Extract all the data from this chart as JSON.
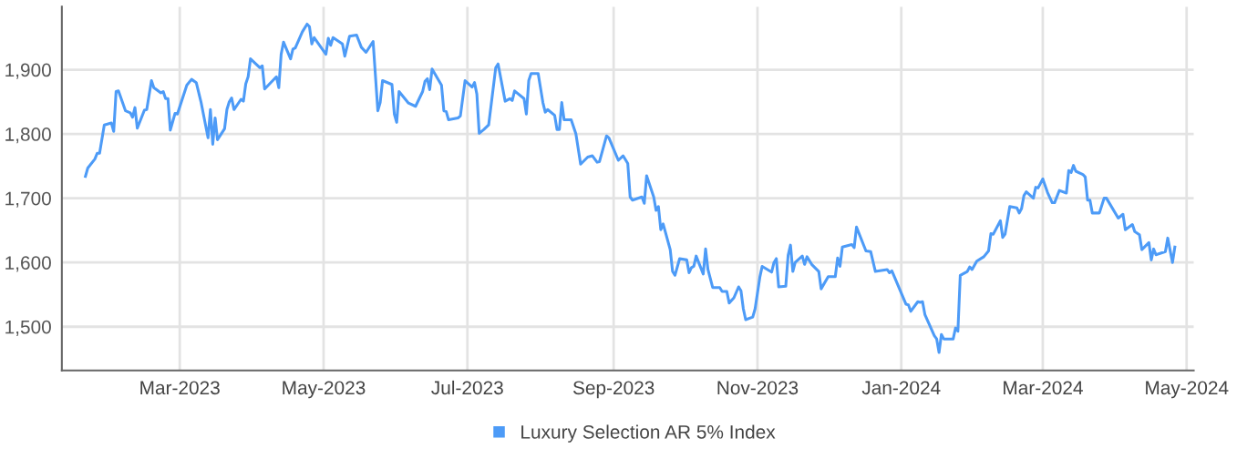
{
  "chart_data": {
    "type": "line",
    "xlim": [
      "2023-01-10",
      "2024-05-04"
    ],
    "ylim": [
      1432,
      1998
    ],
    "xticks": [
      {
        "value": "2023-03-01",
        "label": "Mar-2023"
      },
      {
        "value": "2023-05-01",
        "label": "May-2023"
      },
      {
        "value": "2023-07-01",
        "label": "Jul-2023"
      },
      {
        "value": "2023-09-01",
        "label": "Sep-2023"
      },
      {
        "value": "2023-11-01",
        "label": "Nov-2023"
      },
      {
        "value": "2024-01-01",
        "label": "Jan-2024"
      },
      {
        "value": "2024-03-01",
        "label": "Mar-2024"
      },
      {
        "value": "2024-05-01",
        "label": "May-2024"
      }
    ],
    "yticks": [
      {
        "value": 1500,
        "label": "1,500"
      },
      {
        "value": 1600,
        "label": "1,600"
      },
      {
        "value": 1700,
        "label": "1,700"
      },
      {
        "value": 1800,
        "label": "1,800"
      },
      {
        "value": 1900,
        "label": "1,900"
      }
    ],
    "grid": true,
    "legend": "bottom",
    "marker": "none",
    "line_style": "solid",
    "series": [
      {
        "name": "Luxury Selection AR 5% Index",
        "color": "#4d9bf7",
        "x": [
          "2023-01-20",
          "2023-01-21",
          "2023-01-24",
          "2023-01-25",
          "2023-01-26",
          "2023-01-28",
          "2023-01-31",
          "2023-02-01",
          "2023-02-02",
          "2023-02-03",
          "2023-02-06",
          "2023-02-08",
          "2023-02-09",
          "2023-02-10",
          "2023-02-11",
          "2023-02-14",
          "2023-02-15",
          "2023-02-17",
          "2023-02-18",
          "2023-02-21",
          "2023-02-22",
          "2023-02-23",
          "2023-02-24",
          "2023-02-25",
          "2023-02-27",
          "2023-02-28",
          "2023-03-04",
          "2023-03-06",
          "2023-03-08",
          "2023-03-10",
          "2023-03-13",
          "2023-03-14",
          "2023-03-15",
          "2023-03-16",
          "2023-03-17",
          "2023-03-20",
          "2023-03-21",
          "2023-03-22",
          "2023-03-23",
          "2023-03-24",
          "2023-03-27",
          "2023-03-28",
          "2023-03-29",
          "2023-03-30",
          "2023-03-31",
          "2023-04-04",
          "2023-04-05",
          "2023-04-06",
          "2023-04-11",
          "2023-04-12",
          "2023-04-13",
          "2023-04-14",
          "2023-04-17",
          "2023-04-18",
          "2023-04-19",
          "2023-04-22",
          "2023-04-24",
          "2023-04-25",
          "2023-04-26",
          "2023-04-27",
          "2023-05-02",
          "2023-05-03",
          "2023-05-04",
          "2023-05-05",
          "2023-05-09",
          "2023-05-10",
          "2023-05-12",
          "2023-05-15",
          "2023-05-17",
          "2023-05-19",
          "2023-05-22",
          "2023-05-24",
          "2023-05-25",
          "2023-05-26",
          "2023-05-30",
          "2023-05-31",
          "2023-06-01",
          "2023-06-02",
          "2023-06-06",
          "2023-06-09",
          "2023-06-12",
          "2023-06-13",
          "2023-06-14",
          "2023-06-15",
          "2023-06-16",
          "2023-06-20",
          "2023-06-21",
          "2023-06-22",
          "2023-06-23",
          "2023-06-27",
          "2023-06-28",
          "2023-06-30",
          "2023-07-03",
          "2023-07-04",
          "2023-07-05",
          "2023-07-06",
          "2023-07-08",
          "2023-07-10",
          "2023-07-13",
          "2023-07-14",
          "2023-07-17",
          "2023-07-19",
          "2023-07-20",
          "2023-07-21",
          "2023-07-25",
          "2023-07-26",
          "2023-07-27",
          "2023-07-28",
          "2023-07-31",
          "2023-08-02",
          "2023-08-03",
          "2023-08-04",
          "2023-08-07",
          "2023-08-08",
          "2023-08-09",
          "2023-08-10",
          "2023-08-11",
          "2023-08-14",
          "2023-08-16",
          "2023-08-18",
          "2023-08-21",
          "2023-08-23",
          "2023-08-25",
          "2023-08-26",
          "2023-08-29",
          "2023-08-30",
          "2023-09-03",
          "2023-09-05",
          "2023-09-07",
          "2023-09-08",
          "2023-09-09",
          "2023-09-13",
          "2023-09-14",
          "2023-09-15",
          "2023-09-18",
          "2023-09-19",
          "2023-09-20",
          "2023-09-21",
          "2023-09-22",
          "2023-09-25",
          "2023-09-26",
          "2023-09-27",
          "2023-09-29",
          "2023-10-02",
          "2023-10-03",
          "2023-10-04",
          "2023-10-05",
          "2023-10-06",
          "2023-10-09",
          "2023-10-10",
          "2023-10-11",
          "2023-10-13",
          "2023-10-16",
          "2023-10-17",
          "2023-10-19",
          "2023-10-20",
          "2023-10-22",
          "2023-10-24",
          "2023-10-25",
          "2023-10-26",
          "2023-10-27",
          "2023-10-30",
          "2023-10-31",
          "2023-11-02",
          "2023-11-03",
          "2023-11-07",
          "2023-11-08",
          "2023-11-09",
          "2023-11-10",
          "2023-11-13",
          "2023-11-14",
          "2023-11-15",
          "2023-11-16",
          "2023-11-17",
          "2023-11-20",
          "2023-11-21",
          "2023-11-22",
          "2023-11-24",
          "2023-11-27",
          "2023-11-28",
          "2023-12-01",
          "2023-12-04",
          "2023-12-05",
          "2023-12-06",
          "2023-12-07",
          "2023-12-11",
          "2023-12-12",
          "2023-12-13",
          "2023-12-17",
          "2023-12-19",
          "2023-12-21",
          "2023-12-26",
          "2023-12-27",
          "2023-12-28",
          "2024-01-03",
          "2024-01-04",
          "2024-01-05",
          "2024-01-08",
          "2024-01-09",
          "2024-01-10",
          "2024-01-11",
          "2024-01-15",
          "2024-01-16",
          "2024-01-17",
          "2024-01-18",
          "2024-01-19",
          "2024-01-23",
          "2024-01-24",
          "2024-01-25",
          "2024-01-26",
          "2024-01-29",
          "2024-01-30",
          "2024-01-31",
          "2024-02-02",
          "2024-02-05",
          "2024-02-07",
          "2024-02-08",
          "2024-02-09",
          "2024-02-12",
          "2024-02-13",
          "2024-02-14",
          "2024-02-16",
          "2024-02-19",
          "2024-02-20",
          "2024-02-21",
          "2024-02-22",
          "2024-02-23",
          "2024-02-26",
          "2024-02-27",
          "2024-02-28",
          "2024-03-01",
          "2024-03-03",
          "2024-03-05",
          "2024-03-06",
          "2024-03-08",
          "2024-03-11",
          "2024-03-12",
          "2024-03-13",
          "2024-03-14",
          "2024-03-15",
          "2024-03-18",
          "2024-03-19",
          "2024-03-20",
          "2024-03-21",
          "2024-03-22",
          "2024-03-25",
          "2024-03-27",
          "2024-03-28",
          "2024-04-02",
          "2024-04-04",
          "2024-04-05",
          "2024-04-08",
          "2024-04-09",
          "2024-04-11",
          "2024-04-12",
          "2024-04-15",
          "2024-04-16",
          "2024-04-17",
          "2024-04-18",
          "2024-04-22",
          "2024-04-23",
          "2024-04-25",
          "2024-04-26"
        ],
        "values": [
          1734,
          1747,
          1761,
          1770,
          1770,
          1814,
          1817,
          1804,
          1866,
          1867,
          1836,
          1833,
          1826,
          1841,
          1809,
          1837,
          1838,
          1883,
          1872,
          1864,
          1866,
          1855,
          1855,
          1806,
          1832,
          1831,
          1876,
          1885,
          1880,
          1850,
          1794,
          1838,
          1784,
          1825,
          1791,
          1808,
          1838,
          1850,
          1856,
          1838,
          1854,
          1851,
          1878,
          1889,
          1917,
          1903,
          1906,
          1870,
          1889,
          1872,
          1924,
          1943,
          1917,
          1932,
          1934,
          1959,
          1971,
          1967,
          1940,
          1950,
          1924,
          1949,
          1938,
          1950,
          1940,
          1921,
          1952,
          1954,
          1935,
          1927,
          1944,
          1836,
          1849,
          1883,
          1877,
          1831,
          1818,
          1866,
          1848,
          1843,
          1866,
          1882,
          1886,
          1869,
          1901,
          1876,
          1836,
          1835,
          1822,
          1825,
          1828,
          1883,
          1873,
          1880,
          1862,
          1801,
          1807,
          1814,
          1903,
          1909,
          1851,
          1855,
          1852,
          1867,
          1855,
          1831,
          1883,
          1894,
          1894,
          1849,
          1834,
          1838,
          1829,
          1807,
          1807,
          1849,
          1822,
          1822,
          1800,
          1753,
          1764,
          1766,
          1756,
          1757,
          1797,
          1794,
          1759,
          1766,
          1754,
          1702,
          1697,
          1702,
          1692,
          1735,
          1702,
          1681,
          1687,
          1651,
          1660,
          1620,
          1586,
          1580,
          1606,
          1604,
          1584,
          1592,
          1594,
          1610,
          1582,
          1621,
          1589,
          1561,
          1561,
          1555,
          1555,
          1537,
          1545,
          1562,
          1556,
          1528,
          1511,
          1515,
          1528,
          1577,
          1594,
          1585,
          1600,
          1606,
          1562,
          1563,
          1611,
          1627,
          1586,
          1600,
          1610,
          1597,
          1609,
          1597,
          1586,
          1559,
          1578,
          1578,
          1607,
          1594,
          1624,
          1628,
          1623,
          1655,
          1618,
          1617,
          1586,
          1589,
          1584,
          1587,
          1535,
          1534,
          1524,
          1539,
          1538,
          1539,
          1519,
          1486,
          1481,
          1460,
          1488,
          1481,
          1481,
          1498,
          1493,
          1580,
          1586,
          1593,
          1589,
          1602,
          1609,
          1618,
          1645,
          1644,
          1665,
          1639,
          1644,
          1687,
          1685,
          1677,
          1684,
          1704,
          1710,
          1700,
          1717,
          1716,
          1730,
          1709,
          1693,
          1693,
          1712,
          1708,
          1743,
          1740,
          1751,
          1742,
          1737,
          1733,
          1697,
          1697,
          1677,
          1677,
          1700,
          1700,
          1669,
          1675,
          1651,
          1659,
          1648,
          1643,
          1620,
          1631,
          1604,
          1621,
          1612,
          1617,
          1638,
          1600,
          1624
        ]
      }
    ]
  }
}
